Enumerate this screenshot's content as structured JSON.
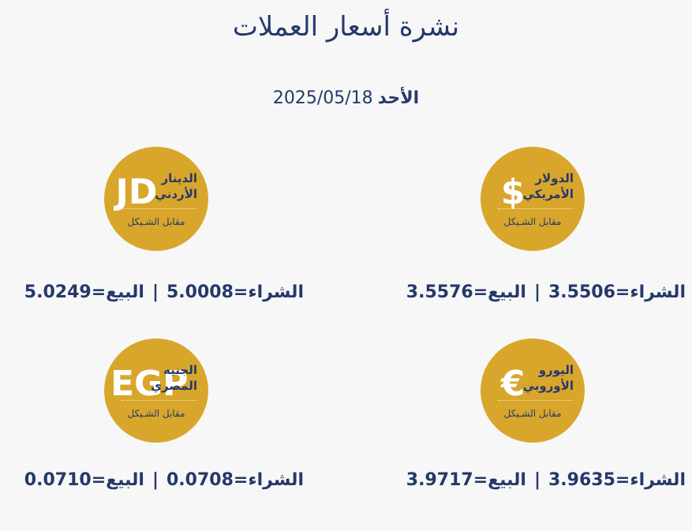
{
  "header": {
    "title": "نشرة أسعار العملات",
    "day": "الأحد",
    "date": "2025/05/18"
  },
  "separator": "|",
  "currencies": [
    {
      "symbol": "$",
      "name_lines": [
        "الدولار",
        "الأمريكي"
      ],
      "subtitle": "مقابل الشـيكل",
      "buy_label": "الشراء=",
      "buy": "3.5506",
      "sell_label": "البيع=",
      "sell": "3.5576"
    },
    {
      "symbol": "JD",
      "name_lines": [
        "الدينار",
        "الأردني"
      ],
      "subtitle": "مقابل الشـيكل",
      "buy_label": "الشراء=",
      "buy": "5.0008",
      "sell_label": "البيع=",
      "sell": "5.0249"
    },
    {
      "symbol": "€",
      "name_lines": [
        "اليورو",
        "الأوروبي"
      ],
      "subtitle": "مقابل الشـيكل",
      "buy_label": "الشراء=",
      "buy": "3.9635",
      "sell_label": "البيع=",
      "sell": "3.9717"
    },
    {
      "symbol": "EGP",
      "name_lines": [
        "الجنيه",
        "المصري"
      ],
      "subtitle": "مقابل الشـيكل",
      "buy_label": "الشراء=",
      "buy": "0.0708",
      "sell_label": "البيع=",
      "sell": "0.0710"
    }
  ]
}
